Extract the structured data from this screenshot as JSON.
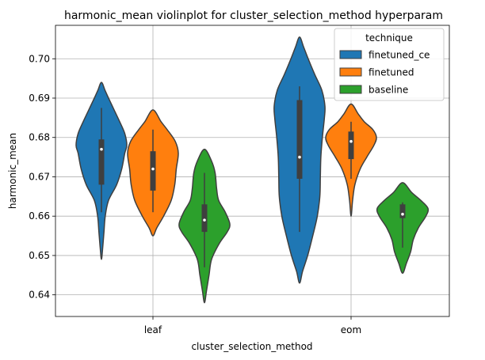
{
  "chart_data": {
    "type": "violin",
    "title": "harmonic_mean violinplot for cluster_selection_method hyperparam",
    "xlabel": "cluster_selection_method",
    "ylabel": "harmonic_mean",
    "categories": [
      "leaf",
      "eom"
    ],
    "ylim": [
      0.6345,
      0.7085
    ],
    "yticks": [
      0.64,
      0.65,
      0.66,
      0.67,
      0.68,
      0.69,
      0.7
    ],
    "ytick_labels": [
      "0.64",
      "0.65",
      "0.66",
      "0.67",
      "0.68",
      "0.69",
      "0.70"
    ],
    "grid": true,
    "legend": {
      "title": "technique",
      "placement": "top-right"
    },
    "series": [
      {
        "name": "finetuned_ce",
        "color": "#1f77b4",
        "groups": [
          {
            "category": "leaf",
            "min": 0.649,
            "max": 0.694,
            "whisker_low": 0.661,
            "q1": 0.668,
            "median": 0.677,
            "q3": 0.6795,
            "whisker_high": 0.6875,
            "profile": [
              [
                0.649,
                0.0
              ],
              [
                0.652,
                0.05
              ],
              [
                0.656,
                0.1
              ],
              [
                0.66,
                0.15
              ],
              [
                0.664,
                0.28
              ],
              [
                0.668,
                0.6
              ],
              [
                0.672,
                0.8
              ],
              [
                0.676,
                0.92
              ],
              [
                0.678,
                1.0
              ],
              [
                0.681,
                0.92
              ],
              [
                0.684,
                0.72
              ],
              [
                0.687,
                0.5
              ],
              [
                0.69,
                0.28
              ],
              [
                0.692,
                0.14
              ],
              [
                0.694,
                0.0
              ]
            ]
          },
          {
            "category": "eom",
            "min": 0.643,
            "max": 0.7055,
            "whisker_low": 0.656,
            "q1": 0.6695,
            "median": 0.675,
            "q3": 0.6895,
            "whisker_high": 0.693,
            "profile": [
              [
                0.643,
                0.0
              ],
              [
                0.646,
                0.12
              ],
              [
                0.65,
                0.32
              ],
              [
                0.655,
                0.52
              ],
              [
                0.66,
                0.7
              ],
              [
                0.665,
                0.8
              ],
              [
                0.67,
                0.82
              ],
              [
                0.675,
                0.84
              ],
              [
                0.68,
                0.9
              ],
              [
                0.685,
                0.98
              ],
              [
                0.688,
                1.0
              ],
              [
                0.692,
                0.88
              ],
              [
                0.696,
                0.6
              ],
              [
                0.7,
                0.34
              ],
              [
                0.703,
                0.16
              ],
              [
                0.7055,
                0.0
              ]
            ]
          }
        ]
      },
      {
        "name": "finetuned",
        "color": "#ff7f0e",
        "groups": [
          {
            "category": "leaf",
            "min": 0.655,
            "max": 0.687,
            "whisker_low": 0.661,
            "q1": 0.6665,
            "median": 0.672,
            "q3": 0.6765,
            "whisker_high": 0.682,
            "profile": [
              [
                0.655,
                0.0
              ],
              [
                0.657,
                0.15
              ],
              [
                0.66,
                0.42
              ],
              [
                0.664,
                0.72
              ],
              [
                0.668,
                0.86
              ],
              [
                0.672,
                0.92
              ],
              [
                0.676,
                1.0
              ],
              [
                0.679,
                0.88
              ],
              [
                0.682,
                0.56
              ],
              [
                0.684,
                0.32
              ],
              [
                0.687,
                0.0
              ]
            ]
          },
          {
            "category": "eom",
            "min": 0.66,
            "max": 0.6885,
            "whisker_low": 0.6695,
            "q1": 0.6745,
            "median": 0.679,
            "q3": 0.6815,
            "whisker_high": 0.684,
            "profile": [
              [
                0.66,
                0.0
              ],
              [
                0.664,
                0.06
              ],
              [
                0.668,
                0.15
              ],
              [
                0.672,
                0.36
              ],
              [
                0.675,
                0.62
              ],
              [
                0.678,
                0.9
              ],
              [
                0.68,
                1.0
              ],
              [
                0.682,
                0.86
              ],
              [
                0.684,
                0.52
              ],
              [
                0.686,
                0.28
              ],
              [
                0.6885,
                0.0
              ]
            ]
          }
        ]
      },
      {
        "name": "baseline",
        "color": "#2ca02c",
        "groups": [
          {
            "category": "leaf",
            "min": 0.638,
            "max": 0.677,
            "whisker_low": 0.647,
            "q1": 0.656,
            "median": 0.659,
            "q3": 0.663,
            "whisker_high": 0.671,
            "profile": [
              [
                0.638,
                0.0
              ],
              [
                0.641,
                0.08
              ],
              [
                0.645,
                0.18
              ],
              [
                0.649,
                0.28
              ],
              [
                0.653,
                0.58
              ],
              [
                0.656,
                0.9
              ],
              [
                0.658,
                1.0
              ],
              [
                0.661,
                0.82
              ],
              [
                0.664,
                0.56
              ],
              [
                0.667,
                0.48
              ],
              [
                0.671,
                0.42
              ],
              [
                0.674,
                0.28
              ],
              [
                0.677,
                0.0
              ]
            ]
          },
          {
            "category": "eom",
            "min": 0.6455,
            "max": 0.6685,
            "whisker_low": 0.652,
            "q1": 0.6595,
            "median": 0.6605,
            "q3": 0.663,
            "whisker_high": 0.6635,
            "profile": [
              [
                0.6455,
                0.0
              ],
              [
                0.648,
                0.15
              ],
              [
                0.651,
                0.32
              ],
              [
                0.654,
                0.42
              ],
              [
                0.657,
                0.62
              ],
              [
                0.66,
                0.92
              ],
              [
                0.662,
                1.0
              ],
              [
                0.664,
                0.72
              ],
              [
                0.666,
                0.36
              ],
              [
                0.6685,
                0.0
              ]
            ]
          }
        ]
      }
    ]
  }
}
